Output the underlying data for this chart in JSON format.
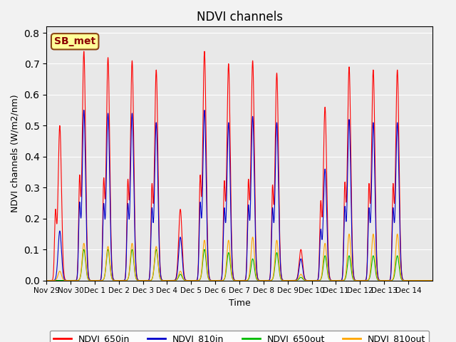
{
  "title": "NDVI channels",
  "ylabel": "NDVI channels (W/m2/nm)",
  "xlabel": "Time",
  "annotation": "SB_met",
  "ylim": [
    0.0,
    0.82
  ],
  "line_colors": {
    "NDVI_650in": "#FF0000",
    "NDVI_810in": "#0000CC",
    "NDVI_650out": "#00BB00",
    "NDVI_810out": "#FFA500"
  },
  "legend_labels": [
    "NDVI_650in",
    "NDVI_810in",
    "NDVI_650out",
    "NDVI_810out"
  ],
  "xtick_labels": [
    "Nov 29",
    "Nov 30",
    "Dec 1",
    "Dec 2",
    "Dec 3",
    "Dec 4",
    "Dec 5",
    "Dec 6",
    "Dec 7",
    "Dec 8",
    "Dec 9",
    "Dec 10",
    "Dec 11",
    "Dec 12",
    "Dec 13",
    "Dec 14"
  ],
  "daily_peaks_650in": [
    0.5,
    0.74,
    0.72,
    0.71,
    0.68,
    0.23,
    0.74,
    0.7,
    0.71,
    0.67,
    0.1,
    0.56,
    0.69,
    0.68,
    0.68,
    0.0
  ],
  "daily_peaks_810in": [
    0.16,
    0.55,
    0.54,
    0.54,
    0.51,
    0.14,
    0.55,
    0.51,
    0.53,
    0.51,
    0.07,
    0.36,
    0.52,
    0.51,
    0.51,
    0.0
  ],
  "daily_peaks_650out": [
    0.0,
    0.1,
    0.1,
    0.1,
    0.1,
    0.02,
    0.1,
    0.09,
    0.07,
    0.09,
    0.01,
    0.08,
    0.08,
    0.08,
    0.08,
    0.0
  ],
  "daily_peaks_810out": [
    0.03,
    0.12,
    0.11,
    0.12,
    0.11,
    0.03,
    0.13,
    0.13,
    0.14,
    0.13,
    0.02,
    0.12,
    0.15,
    0.15,
    0.15,
    0.0
  ],
  "bg_color": "#E8E8E8",
  "fig_bg_color": "#F2F2F2",
  "yticks": [
    0.0,
    0.1,
    0.2,
    0.3,
    0.4,
    0.5,
    0.6,
    0.7,
    0.8
  ]
}
